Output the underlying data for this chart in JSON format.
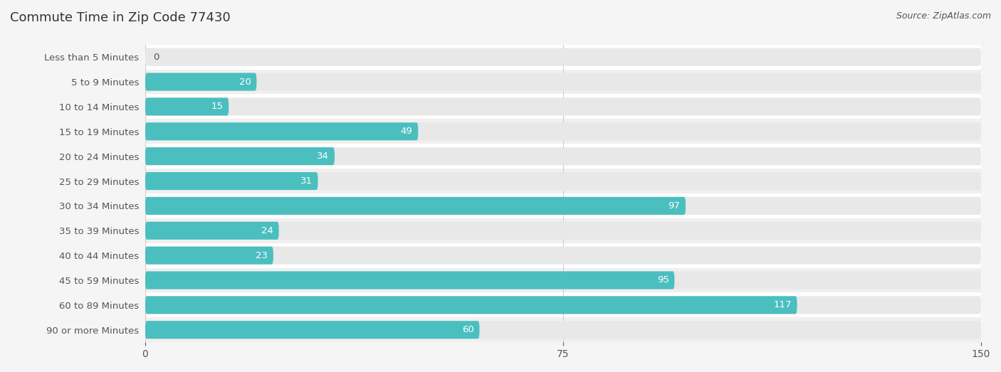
{
  "title": "Commute Time in Zip Code 77430",
  "source": "Source: ZipAtlas.com",
  "categories": [
    "Less than 5 Minutes",
    "5 to 9 Minutes",
    "10 to 14 Minutes",
    "15 to 19 Minutes",
    "20 to 24 Minutes",
    "25 to 29 Minutes",
    "30 to 34 Minutes",
    "35 to 39 Minutes",
    "40 to 44 Minutes",
    "45 to 59 Minutes",
    "60 to 89 Minutes",
    "90 or more Minutes"
  ],
  "values": [
    0,
    20,
    15,
    49,
    34,
    31,
    97,
    24,
    23,
    95,
    117,
    60
  ],
  "bar_color": "#4bbfbf",
  "bar_bg_color": "#e8e8e8",
  "background_color": "#f5f5f5",
  "row_alt_color": "#efefef",
  "text_color": "#555555",
  "title_color": "#333333",
  "value_label_color_inside": "#ffffff",
  "value_label_color_outside": "#555555",
  "xlim": [
    0,
    150
  ],
  "xticks": [
    0,
    75,
    150
  ],
  "title_fontsize": 13,
  "label_fontsize": 9.5,
  "tick_fontsize": 10,
  "source_fontsize": 9,
  "bar_height": 0.72,
  "inside_label_threshold": 8
}
